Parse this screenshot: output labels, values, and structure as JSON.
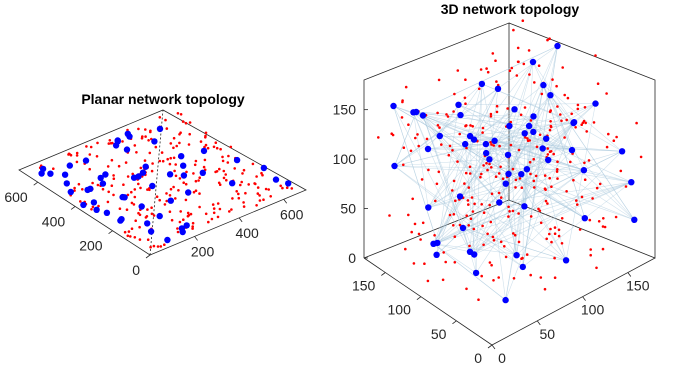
{
  "colors": {
    "sensor_nodes": "#ff0000",
    "cluster_nodes": "#0000ff",
    "links": "#a9c9dc",
    "axes": "#262626",
    "background": "#ffffff"
  },
  "chart_data": [
    {
      "type": "scatter",
      "title": "Planar network topology",
      "projection": "3d-view-isometric",
      "grid": false,
      "legend": "none",
      "xlim": [
        0,
        700
      ],
      "ylim": [
        0,
        700
      ],
      "x_ticks": [
        {
          "value": 200,
          "label": "200"
        },
        {
          "value": 400,
          "label": "400"
        },
        {
          "value": 600,
          "label": "600"
        }
      ],
      "y_ticks": [
        {
          "value": 0,
          "label": "0"
        },
        {
          "value": 200,
          "label": "200"
        },
        {
          "value": 400,
          "label": "400"
        },
        {
          "value": 600,
          "label": "600"
        }
      ],
      "series": [
        {
          "color": "#ff0000",
          "marker": "small-dot",
          "count": 270,
          "seed": 11
        },
        {
          "color": "#0000ff",
          "marker": "large-dot",
          "count": 55,
          "seed": 23
        }
      ]
    },
    {
      "type": "scatter",
      "title": "3D network topology",
      "projection": "3d-view-isometric",
      "grid": false,
      "legend": "none",
      "xlim": [
        0,
        180
      ],
      "ylim": [
        0,
        180
      ],
      "zlim": [
        0,
        180
      ],
      "x_ticks": [
        {
          "value": 0,
          "label": "0"
        },
        {
          "value": 50,
          "label": "50"
        },
        {
          "value": 100,
          "label": "100"
        },
        {
          "value": 150,
          "label": "150"
        }
      ],
      "y_ticks": [
        {
          "value": 0,
          "label": "0"
        },
        {
          "value": 50,
          "label": "50"
        },
        {
          "value": 100,
          "label": "100"
        },
        {
          "value": 150,
          "label": "150"
        }
      ],
      "z_ticks": [
        {
          "value": 0,
          "label": "0"
        },
        {
          "value": 50,
          "label": "50"
        },
        {
          "value": 100,
          "label": "100"
        },
        {
          "value": 150,
          "label": "150"
        }
      ],
      "series": [
        {
          "color": "#ff0000",
          "marker": "small-dot",
          "count": 300,
          "seed": 37
        },
        {
          "color": "#0000ff",
          "marker": "large-dot",
          "count": 60,
          "seed": 51
        }
      ],
      "links": {
        "color": "#a9c9dc",
        "per_cluster_node": 4
      }
    }
  ]
}
